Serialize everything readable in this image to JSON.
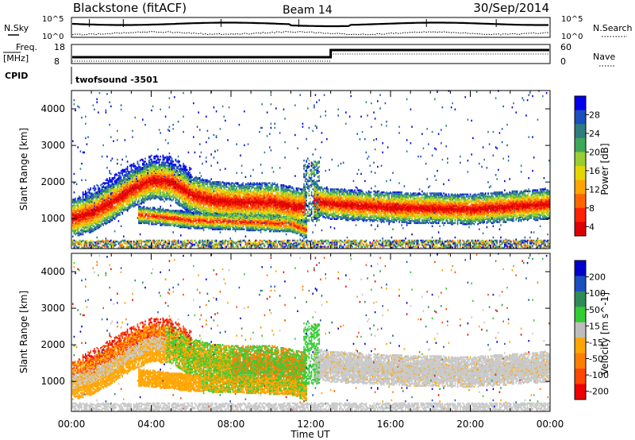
{
  "header": {
    "station": "Blackstone (fitACF)",
    "beam": "Beam 14",
    "date": "30/Sep/2014"
  },
  "noise_panel": {
    "left_label": "N.Sky",
    "right_label": "N.Search",
    "left_ticks": [
      "10^5",
      "10^0"
    ],
    "right_ticks": [
      "10^5",
      "10^0"
    ]
  },
  "freq_panel": {
    "left_label_line1": "Freq.",
    "left_label_line2": "[MHz]",
    "right_label": "Nave",
    "left_ticks": [
      "18",
      "8"
    ],
    "right_ticks": [
      "60",
      "0"
    ]
  },
  "cpid_panel": {
    "label": "CPID",
    "program": "twofsound -3501"
  },
  "chart_data": [
    {
      "type": "heatmap",
      "title": "",
      "xlabel": "",
      "ylabel": "Slant Range [km]",
      "yticks": [
        "4000",
        "3000",
        "2000",
        "1000"
      ],
      "ylim": [
        180,
        4500
      ],
      "colorbar": {
        "label": "Power [dB]",
        "ticks": [
          "28",
          "24",
          "20",
          "16",
          "12",
          "8",
          "4"
        ],
        "colors": [
          "#0000ee",
          "#1b4fbf",
          "#2f7d7d",
          "#3da85a",
          "#9acd32",
          "#e6d600",
          "#ffa500",
          "#ff6600",
          "#ff2200",
          "#dd0000"
        ]
      },
      "bands": [
        {
          "name": "main",
          "range_km_at": [
            [
              0,
              1000
            ],
            [
              1,
              1150
            ],
            [
              2,
              1450
            ],
            [
              3,
              1800
            ],
            [
              4,
              2050
            ],
            [
              5,
              2000
            ],
            [
              6,
              1650
            ],
            [
              7,
              1500
            ],
            [
              8,
              1450
            ],
            [
              9,
              1450
            ],
            [
              10,
              1450
            ],
            [
              11,
              1350
            ],
            [
              11.5,
              1300
            ],
            [
              12,
              1500
            ],
            [
              13,
              1400
            ],
            [
              16,
              1300
            ],
            [
              20,
              1250
            ],
            [
              24,
              1400
            ]
          ]
        },
        {
          "name": "lower",
          "range_km_at": [
            [
              3.5,
              1100
            ],
            [
              6,
              950
            ],
            [
              9,
              900
            ],
            [
              11,
              850
            ],
            [
              11.7,
              700
            ]
          ]
        }
      ]
    },
    {
      "type": "heatmap",
      "title": "",
      "xlabel": "Time UT",
      "ylabel": "Slant Range [km]",
      "xticks": [
        "00:00",
        "04:00",
        "08:00",
        "12:00",
        "16:00",
        "20:00",
        "00:00"
      ],
      "yticks": [
        "4000",
        "3000",
        "2000",
        "1000"
      ],
      "ylim": [
        180,
        4500
      ],
      "xlim_hours": [
        0,
        24
      ],
      "colorbar": {
        "label": "Velocity [m s^-1]",
        "ticks": [
          "200",
          "100",
          "50",
          "15",
          "-15",
          "-50",
          "-100",
          "-200"
        ],
        "colors": [
          "#0000cc",
          "#1b4fbf",
          "#2e8b57",
          "#33cc33",
          "#bdbdbd",
          "#ffa500",
          "#ff7f00",
          "#ff4500",
          "#ee0000"
        ]
      }
    }
  ]
}
